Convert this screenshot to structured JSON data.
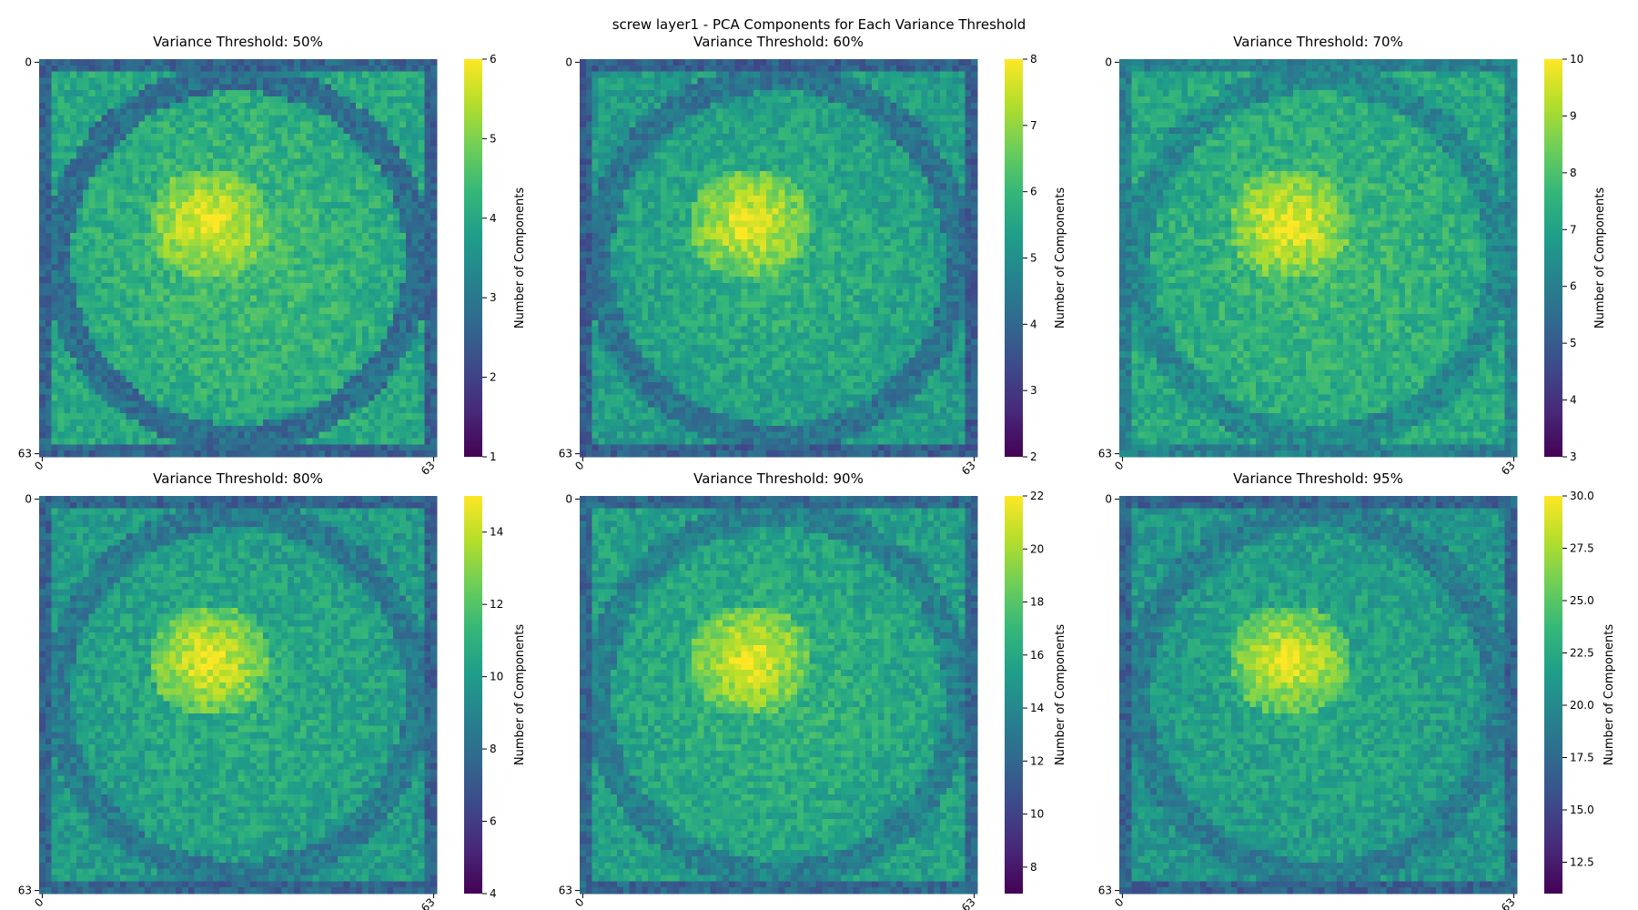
{
  "figure": {
    "suptitle": "screw layer1 - PCA Components for Each Variance Threshold",
    "colormap": "viridis",
    "colormap_stops": [
      "#440154",
      "#482878",
      "#3e4989",
      "#31688e",
      "#26828e",
      "#1f9e89",
      "#35b779",
      "#6ece58",
      "#b5de2b",
      "#fde725"
    ]
  },
  "chart_data": [
    {
      "type": "heatmap",
      "title": "Variance Threshold: 50%",
      "grid": [
        64,
        64
      ],
      "x_tick_labels": [
        "0",
        "63"
      ],
      "y_tick_labels": [
        "0",
        "63"
      ],
      "colorbar": {
        "label": "Number of Components",
        "min": 1,
        "max": 6,
        "ticks": [
          "1",
          "2",
          "3",
          "4",
          "5",
          "6"
        ]
      },
      "value_profile": {
        "border": 2.6,
        "background": 4,
        "ring": 2.8,
        "center": 6,
        "center_peak": 6
      }
    },
    {
      "type": "heatmap",
      "title": "Variance Threshold: 60%",
      "grid": [
        64,
        64
      ],
      "x_tick_labels": [
        "0",
        "63"
      ],
      "y_tick_labels": [
        "0",
        "63"
      ],
      "colorbar": {
        "label": "Number of Components",
        "min": 2,
        "max": 8,
        "ticks": [
          "2",
          "3",
          "4",
          "5",
          "6",
          "7",
          "8"
        ]
      },
      "value_profile": {
        "border": 3.8,
        "background": 5.3,
        "ring": 4.3,
        "center": 7.8,
        "center_peak": 8
      }
    },
    {
      "type": "heatmap",
      "title": "Variance Threshold: 70%",
      "grid": [
        64,
        64
      ],
      "x_tick_labels": [
        "0",
        "63"
      ],
      "y_tick_labels": [
        "0",
        "63"
      ],
      "colorbar": {
        "label": "Number of Components",
        "min": 3,
        "max": 10,
        "ticks": [
          "3",
          "4",
          "5",
          "6",
          "7",
          "8",
          "9",
          "10"
        ]
      },
      "value_profile": {
        "border": 6,
        "background": 7.2,
        "ring": 6.3,
        "center": 9.6,
        "center_peak": 10
      }
    },
    {
      "type": "heatmap",
      "title": "Variance Threshold: 80%",
      "grid": [
        64,
        64
      ],
      "x_tick_labels": [
        "0",
        "63"
      ],
      "y_tick_labels": [
        "0",
        "63"
      ],
      "colorbar": {
        "label": "Number of Components",
        "min": 4,
        "max": 15,
        "ticks": [
          "4",
          "6",
          "8",
          "10",
          "12",
          "14"
        ]
      },
      "value_profile": {
        "border": 7.5,
        "background": 10,
        "ring": 8.5,
        "center": 14,
        "center_peak": 15
      }
    },
    {
      "type": "heatmap",
      "title": "Variance Threshold: 90%",
      "grid": [
        64,
        64
      ],
      "x_tick_labels": [
        "0",
        "63"
      ],
      "y_tick_labels": [
        "0",
        "63"
      ],
      "colorbar": {
        "label": "Number of Components",
        "min": 7,
        "max": 22,
        "ticks": [
          "8",
          "10",
          "12",
          "14",
          "16",
          "18",
          "20",
          "22"
        ]
      },
      "value_profile": {
        "border": 12,
        "background": 15.5,
        "ring": 13.5,
        "center": 21,
        "center_peak": 22
      }
    },
    {
      "type": "heatmap",
      "title": "Variance Threshold: 95%",
      "grid": [
        64,
        64
      ],
      "x_tick_labels": [
        "0",
        "63"
      ],
      "y_tick_labels": [
        "0",
        "63"
      ],
      "colorbar": {
        "label": "Number of Components",
        "min": 11,
        "max": 30,
        "ticks": [
          "12.5",
          "15.0",
          "17.5",
          "20.0",
          "22.5",
          "25.0",
          "27.5",
          "30.0"
        ]
      },
      "value_profile": {
        "border": 17,
        "background": 21,
        "ring": 19,
        "center": 28.5,
        "center_peak": 30
      }
    }
  ]
}
